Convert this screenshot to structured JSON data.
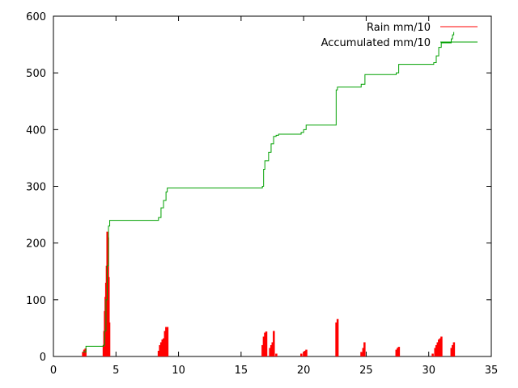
{
  "chart_data": {
    "type": "line",
    "title": "",
    "xlabel": "",
    "ylabel": "",
    "xlim": [
      0,
      35
    ],
    "ylim": [
      0,
      600
    ],
    "x_ticks": [
      0,
      5,
      10,
      15,
      20,
      25,
      30,
      35
    ],
    "y_ticks": [
      0,
      100,
      200,
      300,
      400,
      500,
      600
    ],
    "x_tick_labels": [
      "0",
      "5",
      "10",
      "15",
      "20",
      "25",
      "30",
      "35"
    ],
    "y_tick_labels": [
      "0",
      "100",
      "200",
      "300",
      "400",
      "500",
      "600"
    ],
    "grid": false,
    "legend_position": "top-right",
    "series": [
      {
        "name": "Rain mm/10",
        "style": "impulses",
        "color": "#ff0000",
        "x": [
          2.35,
          2.45,
          2.55,
          4.0,
          4.05,
          4.1,
          4.15,
          4.2,
          4.25,
          4.3,
          4.35,
          4.4,
          4.45,
          8.4,
          8.5,
          8.6,
          8.7,
          8.8,
          8.9,
          9.0,
          9.1,
          16.7,
          16.8,
          16.9,
          17.0,
          17.3,
          17.4,
          17.5,
          17.6,
          17.8,
          19.8,
          20.0,
          20.1,
          20.2,
          22.6,
          22.7,
          24.6,
          24.75,
          24.85,
          27.4,
          27.5,
          27.6,
          30.3,
          30.5,
          30.6,
          30.7,
          30.8,
          30.9,
          31.0,
          31.8,
          31.9,
          32.0
        ],
        "y": [
          8,
          12,
          14,
          20,
          45,
          80,
          105,
          130,
          160,
          220,
          210,
          140,
          60,
          10,
          20,
          25,
          30,
          32,
          45,
          52,
          52,
          20,
          35,
          42,
          44,
          15,
          20,
          25,
          45,
          5,
          5,
          8,
          10,
          12,
          60,
          66,
          8,
          15,
          25,
          12,
          15,
          17,
          5,
          15,
          20,
          25,
          30,
          32,
          35,
          15,
          20,
          25
        ]
      },
      {
        "name": "Accumulated mm/10",
        "style": "steps",
        "color": "#00a000",
        "x": [
          2.35,
          2.6,
          4.0,
          4.1,
          4.2,
          4.3,
          4.4,
          4.5,
          8.4,
          8.6,
          8.8,
          9.0,
          9.1,
          16.7,
          16.8,
          16.9,
          17.2,
          17.4,
          17.6,
          17.8,
          18.0,
          19.8,
          20.0,
          20.2,
          22.6,
          22.7,
          24.6,
          24.9,
          27.4,
          27.6,
          30.4,
          30.6,
          30.8,
          31.0,
          31.8,
          31.9,
          32.0
        ],
        "y": [
          8,
          18,
          20,
          45,
          100,
          160,
          230,
          240,
          245,
          262,
          275,
          290,
          297,
          300,
          330,
          345,
          360,
          375,
          388,
          390,
          392,
          395,
          400,
          408,
          470,
          475,
          480,
          497,
          500,
          515,
          518,
          530,
          545,
          553,
          560,
          567,
          572
        ]
      }
    ]
  }
}
